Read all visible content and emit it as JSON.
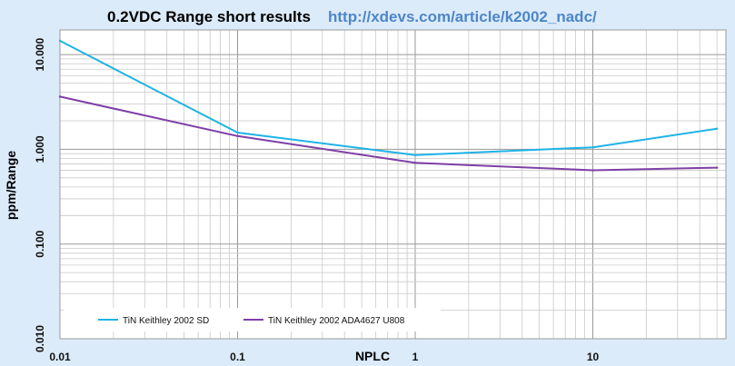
{
  "page": {
    "background_color": "#dcebfa"
  },
  "chart_data": {
    "type": "line",
    "title": "0.2VDC Range short results",
    "subtitle": "http://xdevs.com/article/k2002_nadc/",
    "xlabel": "NPLC",
    "ylabel": "ppm/Range",
    "x_scale": "log",
    "y_scale": "log",
    "xlim": [
      0.01,
      50
    ],
    "ylim": [
      0.01,
      20
    ],
    "x_ticks": [
      {
        "value": 0.01,
        "label": "0.01"
      },
      {
        "value": 0.1,
        "label": "0.1"
      },
      {
        "value": 1,
        "label": "1"
      },
      {
        "value": 10,
        "label": "10"
      }
    ],
    "y_ticks": [
      {
        "value": 0.01,
        "label": "0.010"
      },
      {
        "value": 0.1,
        "label": "0.100"
      },
      {
        "value": 1,
        "label": "1.000"
      },
      {
        "value": 10,
        "label": "10.000"
      }
    ],
    "grid": true,
    "legend_position": "bottom-left",
    "x": [
      0.01,
      0.1,
      1,
      10,
      50
    ],
    "series": [
      {
        "name": "TiN Keithley 2002 SD",
        "color": "#1fb3e6",
        "values": [
          14,
          1.5,
          0.87,
          1.05,
          1.65
        ]
      },
      {
        "name": "TiN Keithley 2002 ADA4627 U808",
        "color": "#7f3fa7",
        "values": [
          3.6,
          1.38,
          0.72,
          0.6,
          0.64
        ]
      }
    ]
  },
  "colors": {
    "url": "#4d86c8",
    "grid_major": "#999999",
    "grid_minor": "#c9c9c9",
    "legend_bg": "#ffffff"
  }
}
